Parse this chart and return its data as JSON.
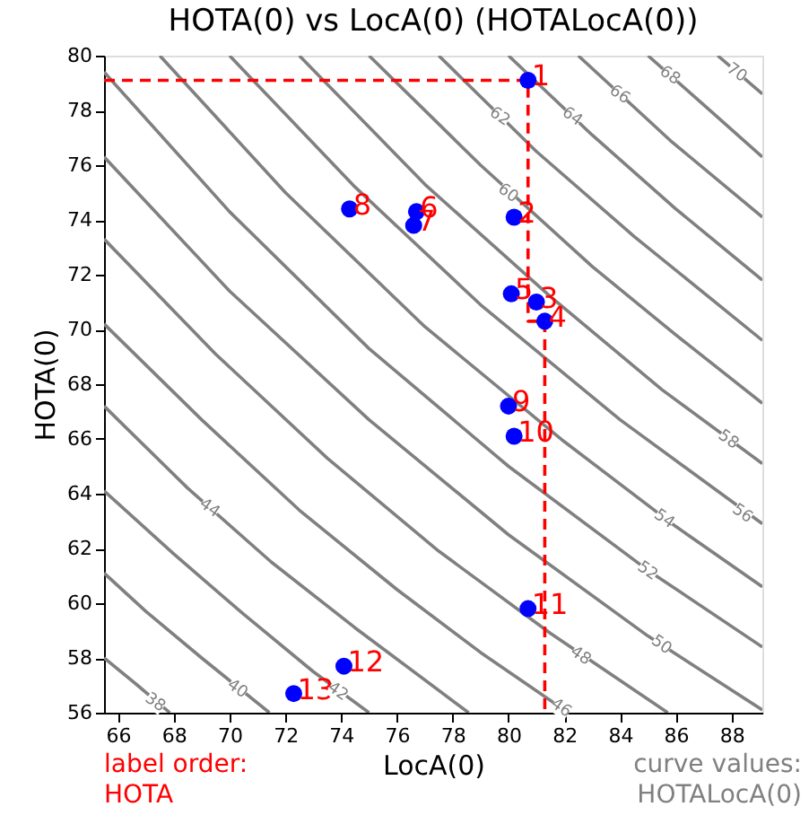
{
  "chart_data": {
    "type": "scatter",
    "title": "HOTA(0) vs LocA(0) (HOTALocA(0))",
    "xlabel": "LocA(0)",
    "ylabel": "HOTA(0)",
    "xlim": [
      65.5,
      89.1
    ],
    "ylim": [
      56,
      80
    ],
    "xticks": [
      66,
      68,
      70,
      72,
      74,
      76,
      78,
      80,
      82,
      84,
      86,
      88
    ],
    "yticks": [
      56,
      58,
      60,
      62,
      64,
      66,
      68,
      70,
      72,
      74,
      76,
      78,
      80
    ],
    "grid": false,
    "series": [
      {
        "type": "line",
        "color": "#808080",
        "x": [
          65.5,
          66.7,
          67.86
        ],
        "values": [
          58.0,
          57.0,
          56.0
        ]
      },
      {
        "type": "line",
        "color": "#808080",
        "x": [
          65.5,
          67,
          69,
          71.43
        ],
        "values": [
          61.1,
          59.7,
          58.0,
          56.0
        ]
      },
      {
        "type": "line",
        "color": "#808080",
        "x": [
          65.5,
          68,
          70.5,
          73,
          75
        ],
        "values": [
          64.1,
          61.8,
          59.6,
          57.5,
          56.0
        ]
      },
      {
        "type": "line",
        "color": "#808080",
        "x": [
          65.5,
          68.5,
          71.5,
          74.5,
          78.57
        ],
        "values": [
          67.2,
          64.2,
          61.5,
          59.1,
          56.0
        ]
      },
      {
        "type": "line",
        "color": "#808080",
        "x": [
          65.5,
          69,
          72.5,
          76,
          79,
          82.14
        ],
        "values": [
          70.2,
          66.7,
          63.4,
          60.5,
          58.2,
          56.0
        ]
      },
      {
        "type": "line",
        "color": "#808080",
        "x": [
          65.5,
          69.5,
          73.5,
          77.5,
          81.5,
          85.71
        ],
        "values": [
          73.3,
          69.1,
          65.3,
          61.9,
          58.9,
          56.0
        ]
      },
      {
        "type": "line",
        "color": "#808080",
        "x": [
          65.5,
          70,
          75,
          80,
          85,
          89.1
        ],
        "values": [
          76.3,
          71.4,
          66.7,
          62.5,
          58.8,
          56.1
        ]
      },
      {
        "type": "line",
        "color": "#808080",
        "x": [
          65.5,
          70,
          75,
          80,
          85,
          89.1
        ],
        "values": [
          79.4,
          74.3,
          69.3,
          65.0,
          61.2,
          58.4
        ]
      },
      {
        "type": "line",
        "color": "#808080",
        "x": [
          67.5,
          72,
          77,
          82,
          86,
          89.1
        ],
        "values": [
          80,
          75.0,
          70.1,
          65.9,
          62.8,
          60.6
        ]
      },
      {
        "type": "line",
        "color": "#808080",
        "x": [
          70,
          74.5,
          79,
          84,
          89.1
        ],
        "values": [
          80,
          75.2,
          70.9,
          66.7,
          62.9
        ]
      },
      {
        "type": "line",
        "color": "#808080",
        "x": [
          72.5,
          77,
          81.5,
          85.5,
          89.1
        ],
        "values": [
          80,
          75.3,
          71.2,
          67.8,
          65.1
        ]
      },
      {
        "type": "line",
        "color": "#808080",
        "x": [
          75,
          79,
          83,
          86,
          89.1
        ],
        "values": [
          80,
          76.0,
          72.3,
          69.8,
          67.3
        ]
      },
      {
        "type": "line",
        "color": "#808080",
        "x": [
          77.5,
          81,
          84.5,
          89.1
        ],
        "values": [
          80,
          76.5,
          73.4,
          69.6
        ]
      },
      {
        "type": "line",
        "color": "#808080",
        "x": [
          80,
          83,
          86,
          89.1
        ],
        "values": [
          80,
          77.1,
          74.4,
          71.8
        ]
      },
      {
        "type": "line",
        "color": "#808080",
        "x": [
          82.5,
          85.8,
          89.1
        ],
        "values": [
          80,
          76.9,
          74.1
        ]
      },
      {
        "type": "line",
        "color": "#808080",
        "x": [
          85,
          87,
          89.1
        ],
        "values": [
          80,
          78.2,
          76.3
        ]
      },
      {
        "type": "line",
        "color": "#808080",
        "x": [
          87.5,
          89.1
        ],
        "values": [
          80,
          78.6
        ]
      },
      {
        "type": "line",
        "color": "#ff0000",
        "line_style": "dashed",
        "x": [
          65.5,
          80.7,
          80.7,
          81.3,
          81.3
        ],
        "values": [
          79.1,
          79.1,
          70.3,
          70.3,
          56
        ]
      },
      {
        "color": "#0000ff",
        "marker": "circle",
        "x": [
          80.7,
          80.2,
          81.0,
          81.3,
          80.1,
          76.7,
          76.6,
          74.3,
          80.0,
          80.2,
          80.7,
          74.1,
          72.3
        ],
        "values": [
          79.1,
          74.1,
          71.0,
          70.3,
          71.3,
          74.3,
          73.8,
          74.4,
          67.2,
          66.1,
          59.8,
          57.7,
          56.7
        ]
      }
    ],
    "annotations": [
      {
        "text": "1",
        "x": 80.7,
        "y": 79.1
      },
      {
        "text": "2",
        "x": 80.2,
        "y": 74.1
      },
      {
        "text": "3",
        "x": 81.0,
        "y": 71.0
      },
      {
        "text": "4",
        "x": 81.3,
        "y": 70.3
      },
      {
        "text": "5",
        "x": 80.1,
        "y": 71.3
      },
      {
        "text": "6",
        "x": 76.7,
        "y": 74.3
      },
      {
        "text": "7",
        "x": 76.6,
        "y": 73.8
      },
      {
        "text": "8",
        "x": 74.3,
        "y": 74.4
      },
      {
        "text": "9",
        "x": 80.0,
        "y": 67.2
      },
      {
        "text": "10",
        "x": 80.2,
        "y": 66.1
      },
      {
        "text": "11",
        "x": 80.7,
        "y": 59.8
      },
      {
        "text": "12",
        "x": 74.1,
        "y": 57.7
      },
      {
        "text": "13",
        "x": 72.3,
        "y": 56.7
      },
      {
        "text": "38",
        "x": 67.35,
        "y": 56.4
      },
      {
        "text": "40",
        "x": 70.3,
        "y": 56.9
      },
      {
        "text": "42",
        "x": 73.9,
        "y": 56.8
      },
      {
        "text": "44",
        "x": 69.3,
        "y": 63.5
      },
      {
        "text": "46",
        "x": 81.9,
        "y": 56.2
      },
      {
        "text": "48",
        "x": 82.6,
        "y": 58.1
      },
      {
        "text": "50",
        "x": 85.5,
        "y": 58.5
      },
      {
        "text": "52",
        "x": 85.0,
        "y": 61.2
      },
      {
        "text": "54",
        "x": 85.6,
        "y": 63.1
      },
      {
        "text": "56",
        "x": 88.4,
        "y": 63.3
      },
      {
        "text": "58",
        "x": 87.9,
        "y": 66.0
      },
      {
        "text": "60",
        "x": 80.0,
        "y": 75.0
      },
      {
        "text": "62",
        "x": 79.7,
        "y": 77.8
      },
      {
        "text": "64",
        "x": 82.3,
        "y": 77.8
      },
      {
        "text": "66",
        "x": 84.0,
        "y": 78.6
      },
      {
        "text": "68",
        "x": 85.8,
        "y": 79.3
      },
      {
        "text": "70",
        "x": 88.2,
        "y": 79.4
      },
      "label order:\nHOTA",
      "curve values:\nHOTALocA(0)"
    ]
  }
}
